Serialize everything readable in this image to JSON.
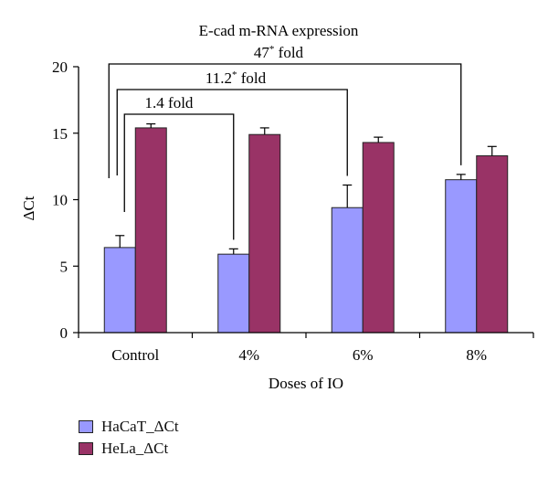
{
  "chart_data": {
    "type": "bar",
    "title": "E-cad m-RNA expression",
    "xlabel": "Doses of IO",
    "ylabel": "ΔCt",
    "categories": [
      "Control",
      "4%",
      "6%",
      "8%"
    ],
    "ylim": [
      0,
      20
    ],
    "yticks": [
      "0",
      "5",
      "10",
      "15",
      "20"
    ],
    "grid": false,
    "legend_position": "bottom-left",
    "series": [
      {
        "name": "HaCaT_ΔCt",
        "color": "#9999ff",
        "values": [
          6.4,
          5.9,
          9.4,
          11.5
        ],
        "errors": [
          0.9,
          0.4,
          1.7,
          0.4
        ]
      },
      {
        "name": "HeLa_ΔCt",
        "color": "#993366",
        "values": [
          15.4,
          14.9,
          14.3,
          13.3
        ],
        "errors": [
          0.3,
          0.5,
          0.4,
          0.7
        ]
      }
    ],
    "annotations": [
      {
        "text": "1.4 fold",
        "from": "Control",
        "to": "4%",
        "star": false
      },
      {
        "text": "11.2",
        "suffix": " fold",
        "from": "Control",
        "to": "6%",
        "star": true
      },
      {
        "text": "47",
        "suffix": " fold",
        "from": "Control",
        "to": "8%",
        "star": true
      }
    ]
  }
}
